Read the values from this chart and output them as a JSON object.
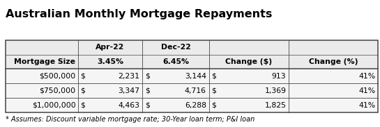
{
  "title": "Australian Monthly Mortgage Repayments",
  "footnote": "* Assumes: Discount variable mortgage rate; 30-Year loan term; P&I loan",
  "bg_color": "#ffffff",
  "table_header_bg": "#ebebeb",
  "table_data_bg": "#f5f5f5",
  "border_color": "#444444",
  "title_fontsize": 11.5,
  "body_fontsize": 7.8,
  "footnote_fontsize": 7.0,
  "rows_data": [
    [
      "$500,000",
      "$",
      "2,231",
      "$",
      "3,144",
      "$",
      "913",
      "41%"
    ],
    [
      "$750,000",
      "$",
      "3,347",
      "$",
      "4,716",
      "$",
      "1,369",
      "41%"
    ],
    [
      "$1,000,000",
      "$",
      "4,463",
      "$",
      "6,288",
      "$",
      "1,825",
      "41%"
    ]
  ]
}
